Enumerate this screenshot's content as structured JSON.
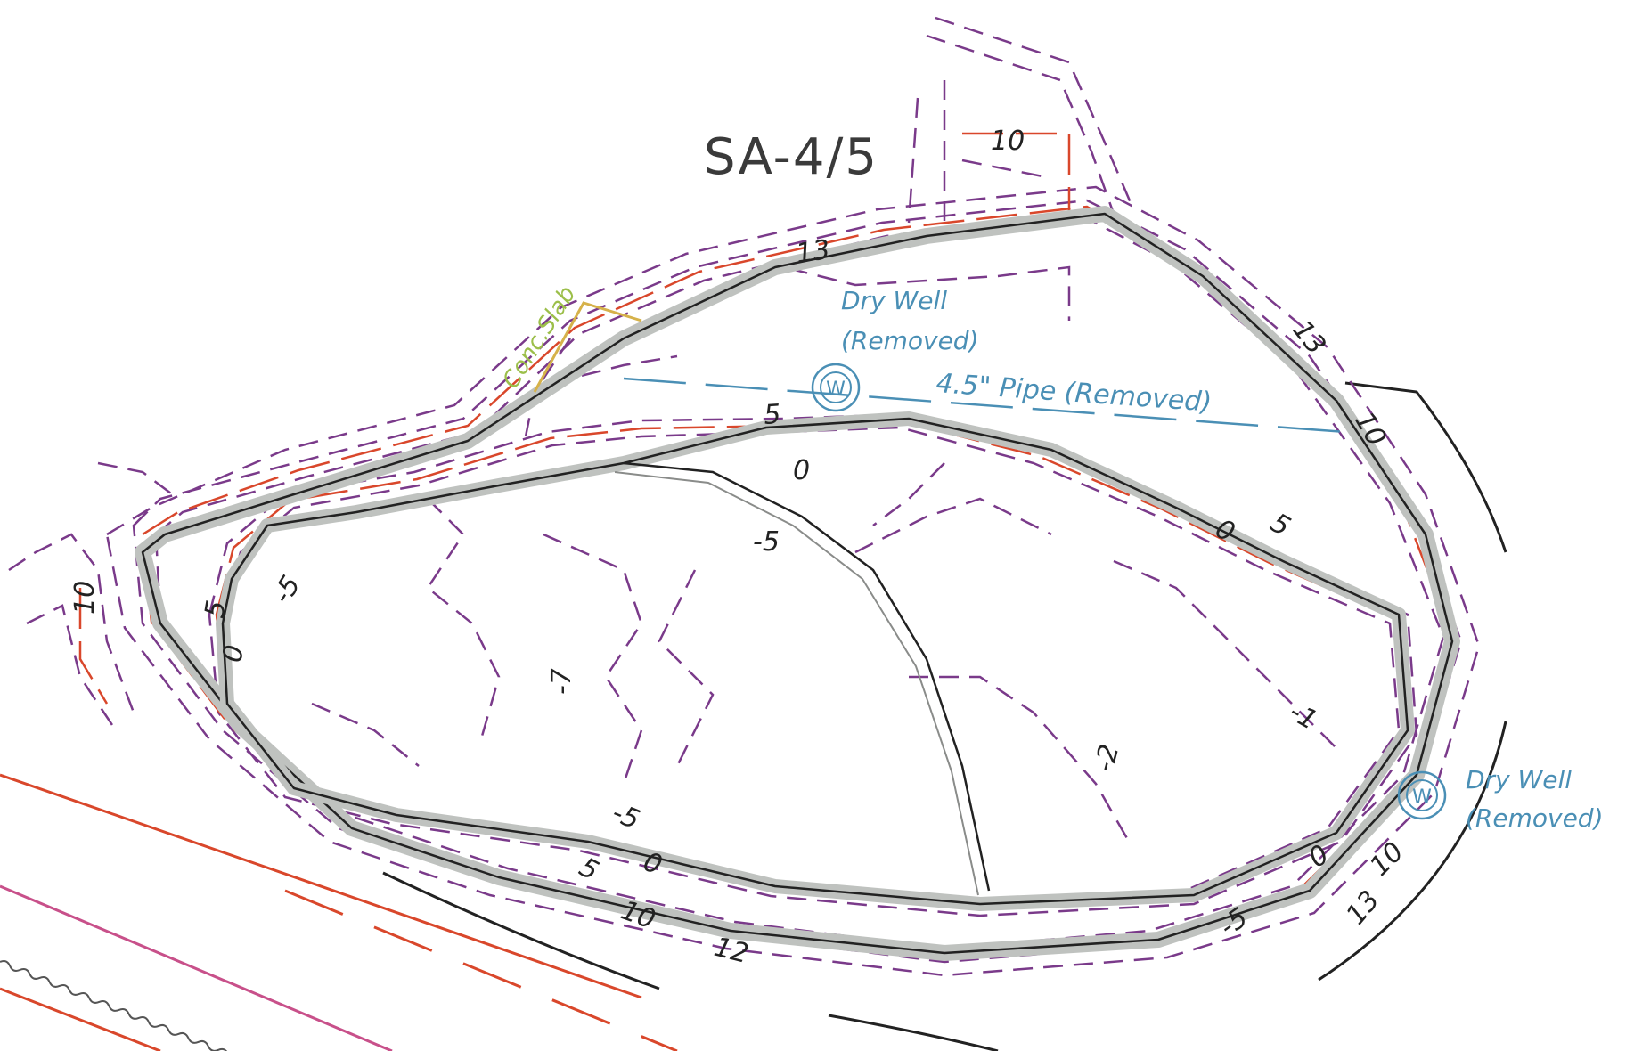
{
  "drawing": {
    "title": "SA-4/5",
    "annotations": {
      "conc_slab": "Conc.Slab",
      "dry_well_north": "Dry Well",
      "dry_well_north_status": "(Removed)",
      "pipe": "4.5\" Pipe (Removed)",
      "dry_well_east": "Dry Well",
      "dry_well_east_status": "(Removed)",
      "well_symbol": "W"
    },
    "contour_labels": {
      "top_13": "13",
      "ne_13": "13",
      "ne_10": "10",
      "top_10": "10",
      "west_10": "10",
      "inner_5_north": "5",
      "inner_0_north": "0",
      "inner_neg5_north": "-5",
      "east_0": "0",
      "east_5": "5",
      "west_neg5": "-5",
      "west_5": "5",
      "west_0": "0",
      "center_neg7": "-7",
      "center_neg2": "-2",
      "center_neg1": "-1",
      "south_neg5": "-5",
      "south_0": "0",
      "south_5": "5",
      "south_10": "10",
      "south_12": "12",
      "se_neg5": "-5",
      "se_0": "0",
      "se_10": "10",
      "se_13": "13"
    },
    "colors": {
      "existing_contour": "#7a3a8a",
      "proposed_contour": "#d9472b",
      "wall": "#222222",
      "wall_fill": "#bfc2bf",
      "annotation_blue": "#4a8fb5",
      "slab_yellow": "#d6b24a",
      "slab_text_green": "#9cbf4a",
      "road_pink": "#c8508a"
    }
  }
}
